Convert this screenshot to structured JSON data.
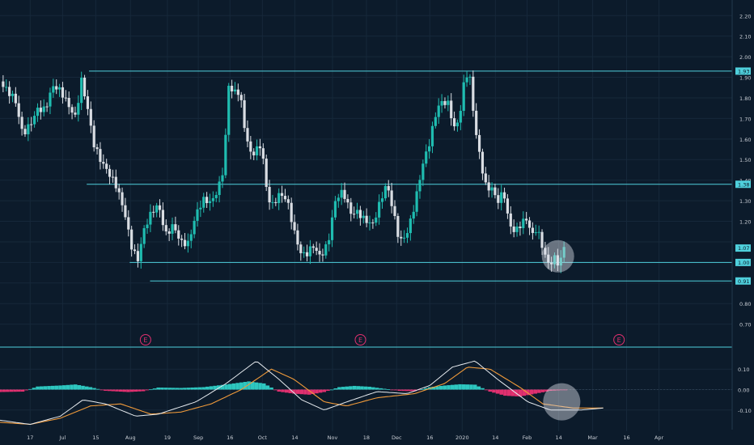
{
  "colors": {
    "background": "#0c1b2b",
    "bull_candle": "#1fbcb0",
    "bear_candle": "#d9dde3",
    "level_line": "#4fd0dc",
    "macd_line": "#e8ecf0",
    "signal_line": "#f09a3a",
    "hist_positive": "#2ec7c0",
    "hist_negative": "#e0306f",
    "earnings_marker": "#e0306f",
    "axis_text": "#c8cdd4"
  },
  "chart_data": [
    {
      "type": "candlestick",
      "title": "",
      "y_axis": {
        "ticks": [
          "2.20",
          "2.10",
          "2.00",
          "1.90",
          "1.80",
          "1.70",
          "1.60",
          "1.50",
          "1.40",
          "1.30",
          "1.20",
          "1.10",
          "1.00",
          "0.90",
          "0.80",
          "0.70"
        ],
        "ylim": [
          0.62,
          2.26
        ]
      },
      "x_axis": {
        "ticks": [
          {
            "label": "17",
            "t": 0.04
          },
          {
            "label": "Jul",
            "t": 0.083
          },
          {
            "label": "15",
            "t": 0.127
          },
          {
            "label": "Aug",
            "t": 0.173
          },
          {
            "label": "19",
            "t": 0.222
          },
          {
            "label": "Sep",
            "t": 0.263
          },
          {
            "label": "16",
            "t": 0.305
          },
          {
            "label": "Oct",
            "t": 0.348
          },
          {
            "label": "14",
            "t": 0.391
          },
          {
            "label": "Nov",
            "t": 0.441
          },
          {
            "label": "18",
            "t": 0.486
          },
          {
            "label": "Dec",
            "t": 0.526
          },
          {
            "label": "16",
            "t": 0.57
          },
          {
            "label": "2020",
            "t": 0.613
          },
          {
            "label": "14",
            "t": 0.657
          },
          {
            "label": "Feb",
            "t": 0.699
          },
          {
            "label": "14",
            "t": 0.741
          },
          {
            "label": "Mar",
            "t": 0.786
          },
          {
            "label": "16",
            "t": 0.831
          },
          {
            "label": "Apr",
            "t": 0.874
          }
        ]
      },
      "price_path": [
        {
          "t": 0.0,
          "v": 1.88
        },
        {
          "t": 0.01,
          "v": 1.8
        },
        {
          "t": 0.02,
          "v": 1.76
        },
        {
          "t": 0.03,
          "v": 1.62
        },
        {
          "t": 0.04,
          "v": 1.7
        },
        {
          "t": 0.05,
          "v": 1.78
        },
        {
          "t": 0.06,
          "v": 1.75
        },
        {
          "t": 0.07,
          "v": 1.83
        },
        {
          "t": 0.08,
          "v": 1.8
        },
        {
          "t": 0.09,
          "v": 1.76
        },
        {
          "t": 0.1,
          "v": 1.73
        },
        {
          "t": 0.108,
          "v": 1.92
        },
        {
          "t": 0.115,
          "v": 1.8
        },
        {
          "t": 0.125,
          "v": 1.56
        },
        {
          "t": 0.135,
          "v": 1.45
        },
        {
          "t": 0.145,
          "v": 1.4
        },
        {
          "t": 0.155,
          "v": 1.37
        },
        {
          "t": 0.165,
          "v": 1.28
        },
        {
          "t": 0.175,
          "v": 1.1
        },
        {
          "t": 0.183,
          "v": 1.02
        },
        {
          "t": 0.19,
          "v": 1.13
        },
        {
          "t": 0.2,
          "v": 1.2
        },
        {
          "t": 0.21,
          "v": 1.26
        },
        {
          "t": 0.22,
          "v": 1.15
        },
        {
          "t": 0.23,
          "v": 1.22
        },
        {
          "t": 0.24,
          "v": 1.12
        },
        {
          "t": 0.25,
          "v": 1.08
        },
        {
          "t": 0.26,
          "v": 1.2
        },
        {
          "t": 0.27,
          "v": 1.28
        },
        {
          "t": 0.28,
          "v": 1.3
        },
        {
          "t": 0.29,
          "v": 1.4
        },
        {
          "t": 0.297,
          "v": 1.5
        },
        {
          "t": 0.303,
          "v": 1.88
        },
        {
          "t": 0.31,
          "v": 1.82
        },
        {
          "t": 0.318,
          "v": 1.8
        },
        {
          "t": 0.325,
          "v": 1.6
        },
        {
          "t": 0.333,
          "v": 1.5
        },
        {
          "t": 0.34,
          "v": 1.55
        },
        {
          "t": 0.347,
          "v": 1.6
        },
        {
          "t": 0.353,
          "v": 1.4
        },
        {
          "t": 0.36,
          "v": 1.3
        },
        {
          "t": 0.37,
          "v": 1.33
        },
        {
          "t": 0.38,
          "v": 1.28
        },
        {
          "t": 0.39,
          "v": 1.12
        },
        {
          "t": 0.398,
          "v": 1.04
        },
        {
          "t": 0.405,
          "v": 1.05
        },
        {
          "t": 0.415,
          "v": 1.12
        },
        {
          "t": 0.425,
          "v": 1.05
        },
        {
          "t": 0.435,
          "v": 1.08
        },
        {
          "t": 0.445,
          "v": 1.27
        },
        {
          "t": 0.455,
          "v": 1.32
        },
        {
          "t": 0.465,
          "v": 1.25
        },
        {
          "t": 0.475,
          "v": 1.28
        },
        {
          "t": 0.485,
          "v": 1.23
        },
        {
          "t": 0.495,
          "v": 1.18
        },
        {
          "t": 0.505,
          "v": 1.27
        },
        {
          "t": 0.513,
          "v": 1.35
        },
        {
          "t": 0.52,
          "v": 1.26
        },
        {
          "t": 0.53,
          "v": 1.12
        },
        {
          "t": 0.54,
          "v": 1.18
        },
        {
          "t": 0.55,
          "v": 1.3
        },
        {
          "t": 0.56,
          "v": 1.45
        },
        {
          "t": 0.57,
          "v": 1.55
        },
        {
          "t": 0.578,
          "v": 1.7
        },
        {
          "t": 0.585,
          "v": 1.78
        },
        {
          "t": 0.595,
          "v": 1.8
        },
        {
          "t": 0.603,
          "v": 1.68
        },
        {
          "t": 0.61,
          "v": 1.74
        },
        {
          "t": 0.617,
          "v": 1.92
        },
        {
          "t": 0.623,
          "v": 1.88
        },
        {
          "t": 0.63,
          "v": 1.62
        },
        {
          "t": 0.638,
          "v": 1.45
        },
        {
          "t": 0.645,
          "v": 1.35
        },
        {
          "t": 0.652,
          "v": 1.38
        },
        {
          "t": 0.66,
          "v": 1.33
        },
        {
          "t": 0.668,
          "v": 1.38
        },
        {
          "t": 0.675,
          "v": 1.2
        },
        {
          "t": 0.683,
          "v": 1.13
        },
        {
          "t": 0.69,
          "v": 1.15
        },
        {
          "t": 0.698,
          "v": 1.18
        },
        {
          "t": 0.706,
          "v": 1.12
        },
        {
          "t": 0.712,
          "v": 1.18
        },
        {
          "t": 0.72,
          "v": 1.1
        },
        {
          "t": 0.728,
          "v": 1.02
        },
        {
          "t": 0.735,
          "v": 1.04
        },
        {
          "t": 0.742,
          "v": 0.98
        },
        {
          "t": 0.748,
          "v": 1.05
        }
      ],
      "horizontal_levels": [
        {
          "value": 1.93,
          "label": "1.93",
          "from_t": 0.118
        },
        {
          "value": 1.38,
          "label": "1.38",
          "from_t": 0.115
        },
        {
          "value": 1.0,
          "label": "1.00",
          "from_t": 0.172
        },
        {
          "value": 0.91,
          "label": "0.91",
          "from_t": 0.199
        }
      ],
      "current_price": {
        "value": 1.07,
        "label": "1.07"
      },
      "earnings_markers": [
        {
          "t": 0.193,
          "label": "E"
        },
        {
          "t": 0.478,
          "label": "E"
        },
        {
          "t": 0.821,
          "label": "E"
        }
      ],
      "highlights": [
        {
          "t": 0.74,
          "v": 1.03
        }
      ]
    },
    {
      "type": "macd",
      "y_axis": {
        "ticks": [
          "0.10",
          "0.00",
          "-0.10"
        ],
        "ylim": [
          -0.18,
          0.18
        ]
      },
      "macd_path": [
        {
          "t": 0.0,
          "v": -0.15
        },
        {
          "t": 0.04,
          "v": -0.17
        },
        {
          "t": 0.08,
          "v": -0.13
        },
        {
          "t": 0.11,
          "v": -0.05
        },
        {
          "t": 0.14,
          "v": -0.07
        },
        {
          "t": 0.18,
          "v": -0.13
        },
        {
          "t": 0.21,
          "v": -0.12
        },
        {
          "t": 0.26,
          "v": -0.06
        },
        {
          "t": 0.3,
          "v": 0.03
        },
        {
          "t": 0.34,
          "v": 0.14
        },
        {
          "t": 0.37,
          "v": 0.05
        },
        {
          "t": 0.4,
          "v": -0.05
        },
        {
          "t": 0.43,
          "v": -0.1
        },
        {
          "t": 0.46,
          "v": -0.06
        },
        {
          "t": 0.5,
          "v": -0.01
        },
        {
          "t": 0.54,
          "v": -0.02
        },
        {
          "t": 0.57,
          "v": 0.02
        },
        {
          "t": 0.6,
          "v": 0.11
        },
        {
          "t": 0.63,
          "v": 0.14
        },
        {
          "t": 0.66,
          "v": 0.05
        },
        {
          "t": 0.7,
          "v": -0.06
        },
        {
          "t": 0.73,
          "v": -0.1
        },
        {
          "t": 0.77,
          "v": -0.1
        },
        {
          "t": 0.8,
          "v": -0.09
        }
      ],
      "signal_path": [
        {
          "t": 0.0,
          "v": -0.16
        },
        {
          "t": 0.04,
          "v": -0.17
        },
        {
          "t": 0.08,
          "v": -0.14
        },
        {
          "t": 0.12,
          "v": -0.08
        },
        {
          "t": 0.16,
          "v": -0.07
        },
        {
          "t": 0.2,
          "v": -0.12
        },
        {
          "t": 0.24,
          "v": -0.11
        },
        {
          "t": 0.28,
          "v": -0.07
        },
        {
          "t": 0.32,
          "v": 0.0
        },
        {
          "t": 0.36,
          "v": 0.1
        },
        {
          "t": 0.39,
          "v": 0.05
        },
        {
          "t": 0.43,
          "v": -0.06
        },
        {
          "t": 0.46,
          "v": -0.08
        },
        {
          "t": 0.5,
          "v": -0.04
        },
        {
          "t": 0.55,
          "v": -0.02
        },
        {
          "t": 0.59,
          "v": 0.03
        },
        {
          "t": 0.62,
          "v": 0.11
        },
        {
          "t": 0.65,
          "v": 0.1
        },
        {
          "t": 0.69,
          "v": 0.01
        },
        {
          "t": 0.72,
          "v": -0.07
        },
        {
          "t": 0.76,
          "v": -0.09
        },
        {
          "t": 0.8,
          "v": -0.09
        }
      ],
      "histogram": [
        {
          "t": 0.0,
          "v": -0.012
        },
        {
          "t": 0.03,
          "v": -0.01
        },
        {
          "t": 0.05,
          "v": 0.015
        },
        {
          "t": 0.08,
          "v": 0.02
        },
        {
          "t": 0.1,
          "v": 0.025
        },
        {
          "t": 0.12,
          "v": 0.012
        },
        {
          "t": 0.14,
          "v": -0.006
        },
        {
          "t": 0.17,
          "v": -0.012
        },
        {
          "t": 0.19,
          "v": -0.008
        },
        {
          "t": 0.21,
          "v": 0.01
        },
        {
          "t": 0.24,
          "v": 0.008
        },
        {
          "t": 0.27,
          "v": 0.012
        },
        {
          "t": 0.3,
          "v": 0.025
        },
        {
          "t": 0.33,
          "v": 0.04
        },
        {
          "t": 0.35,
          "v": 0.03
        },
        {
          "t": 0.37,
          "v": -0.01
        },
        {
          "t": 0.39,
          "v": -0.02
        },
        {
          "t": 0.41,
          "v": -0.025
        },
        {
          "t": 0.43,
          "v": -0.012
        },
        {
          "t": 0.45,
          "v": 0.012
        },
        {
          "t": 0.47,
          "v": 0.018
        },
        {
          "t": 0.49,
          "v": 0.014
        },
        {
          "t": 0.51,
          "v": 0.004
        },
        {
          "t": 0.53,
          "v": -0.006
        },
        {
          "t": 0.55,
          "v": -0.008
        },
        {
          "t": 0.57,
          "v": 0.012
        },
        {
          "t": 0.59,
          "v": 0.02
        },
        {
          "t": 0.61,
          "v": 0.026
        },
        {
          "t": 0.63,
          "v": 0.024
        },
        {
          "t": 0.65,
          "v": -0.01
        },
        {
          "t": 0.67,
          "v": -0.03
        },
        {
          "t": 0.69,
          "v": -0.034
        },
        {
          "t": 0.71,
          "v": -0.02
        },
        {
          "t": 0.73,
          "v": -0.006
        },
        {
          "t": 0.75,
          "v": -0.002
        }
      ],
      "highlights": [
        {
          "t": 0.745,
          "v": -0.06
        }
      ]
    }
  ]
}
